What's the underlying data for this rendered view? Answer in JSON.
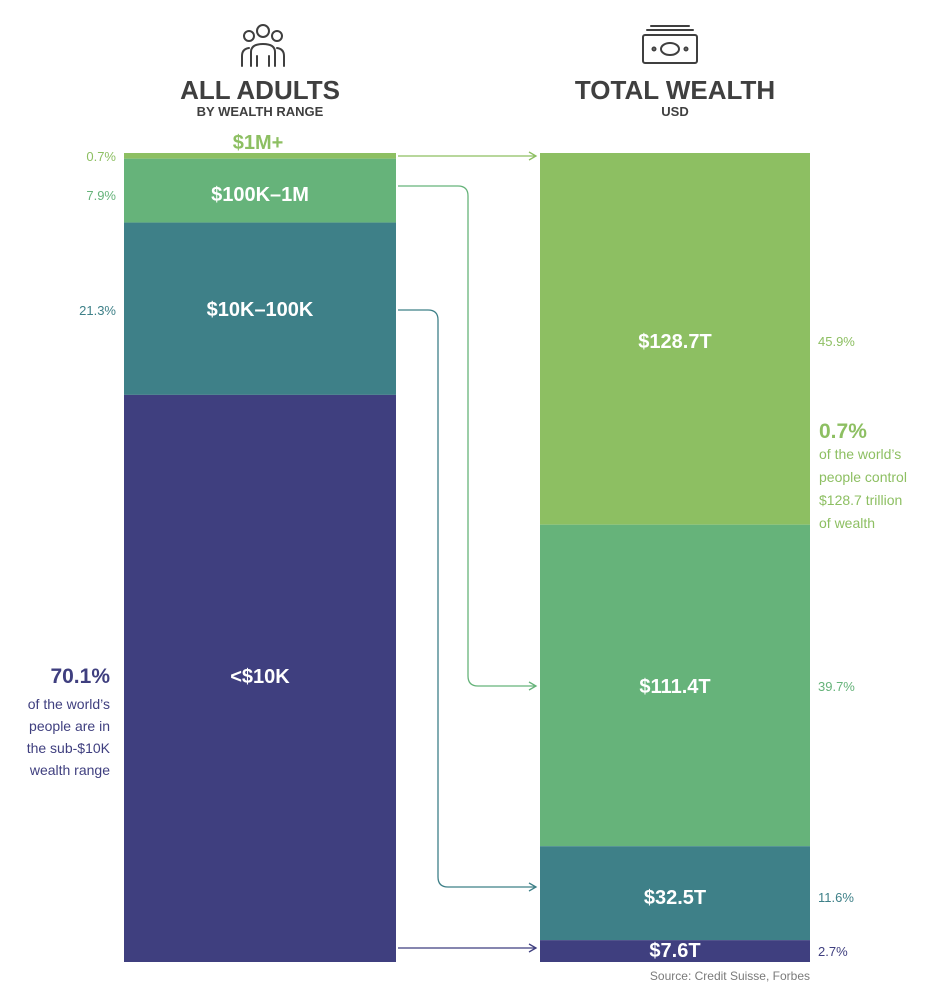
{
  "chart_data": {
    "type": "bar",
    "layout": "two stacked columns with connectors",
    "source": "Source: Credit Suisse, Forbes",
    "left": {
      "title": "ALL ADULTS",
      "subtitle": "BY WEALTH RANGE",
      "icon": "people-group-icon",
      "segments": [
        {
          "label": "$1M+",
          "percent": 0.7,
          "percent_label": "0.7%",
          "color": "#8dbf62"
        },
        {
          "label": "$100K–1M",
          "percent": 7.9,
          "percent_label": "7.9%",
          "color": "#66b37a"
        },
        {
          "label": "$10K–100K",
          "percent": 21.3,
          "percent_label": "21.3%",
          "color": "#3e8088"
        },
        {
          "label": "<$10K",
          "percent": 70.1,
          "percent_label": "70.1%",
          "color": "#3f3f7f"
        }
      ],
      "annotation": {
        "value": "70.1%",
        "lines": [
          "of the world’s",
          "people are in",
          "the sub-$10K",
          "wealth range"
        ],
        "color": "#3f3f7f"
      }
    },
    "right": {
      "title": "TOTAL WEALTH",
      "subtitle": "USD",
      "icon": "banknote-icon",
      "segments": [
        {
          "label": "$128.7T",
          "value": 128.7,
          "percent": 45.9,
          "percent_label": "45.9%",
          "color": "#8dbf62"
        },
        {
          "label": "$111.4T",
          "value": 111.4,
          "percent": 39.7,
          "percent_label": "39.7%",
          "color": "#66b37a"
        },
        {
          "label": "$32.5T",
          "value": 32.5,
          "percent": 11.6,
          "percent_label": "11.6%",
          "color": "#3e8088"
        },
        {
          "label": "$7.6T",
          "value": 7.6,
          "percent": 2.7,
          "percent_label": "2.7%",
          "color": "#3f3f7f"
        }
      ],
      "annotation": {
        "value": "0.7%",
        "lines": [
          "of the world’s",
          "people control",
          "$128.7 trillion",
          "of wealth"
        ],
        "color": "#8dbf62"
      }
    }
  }
}
